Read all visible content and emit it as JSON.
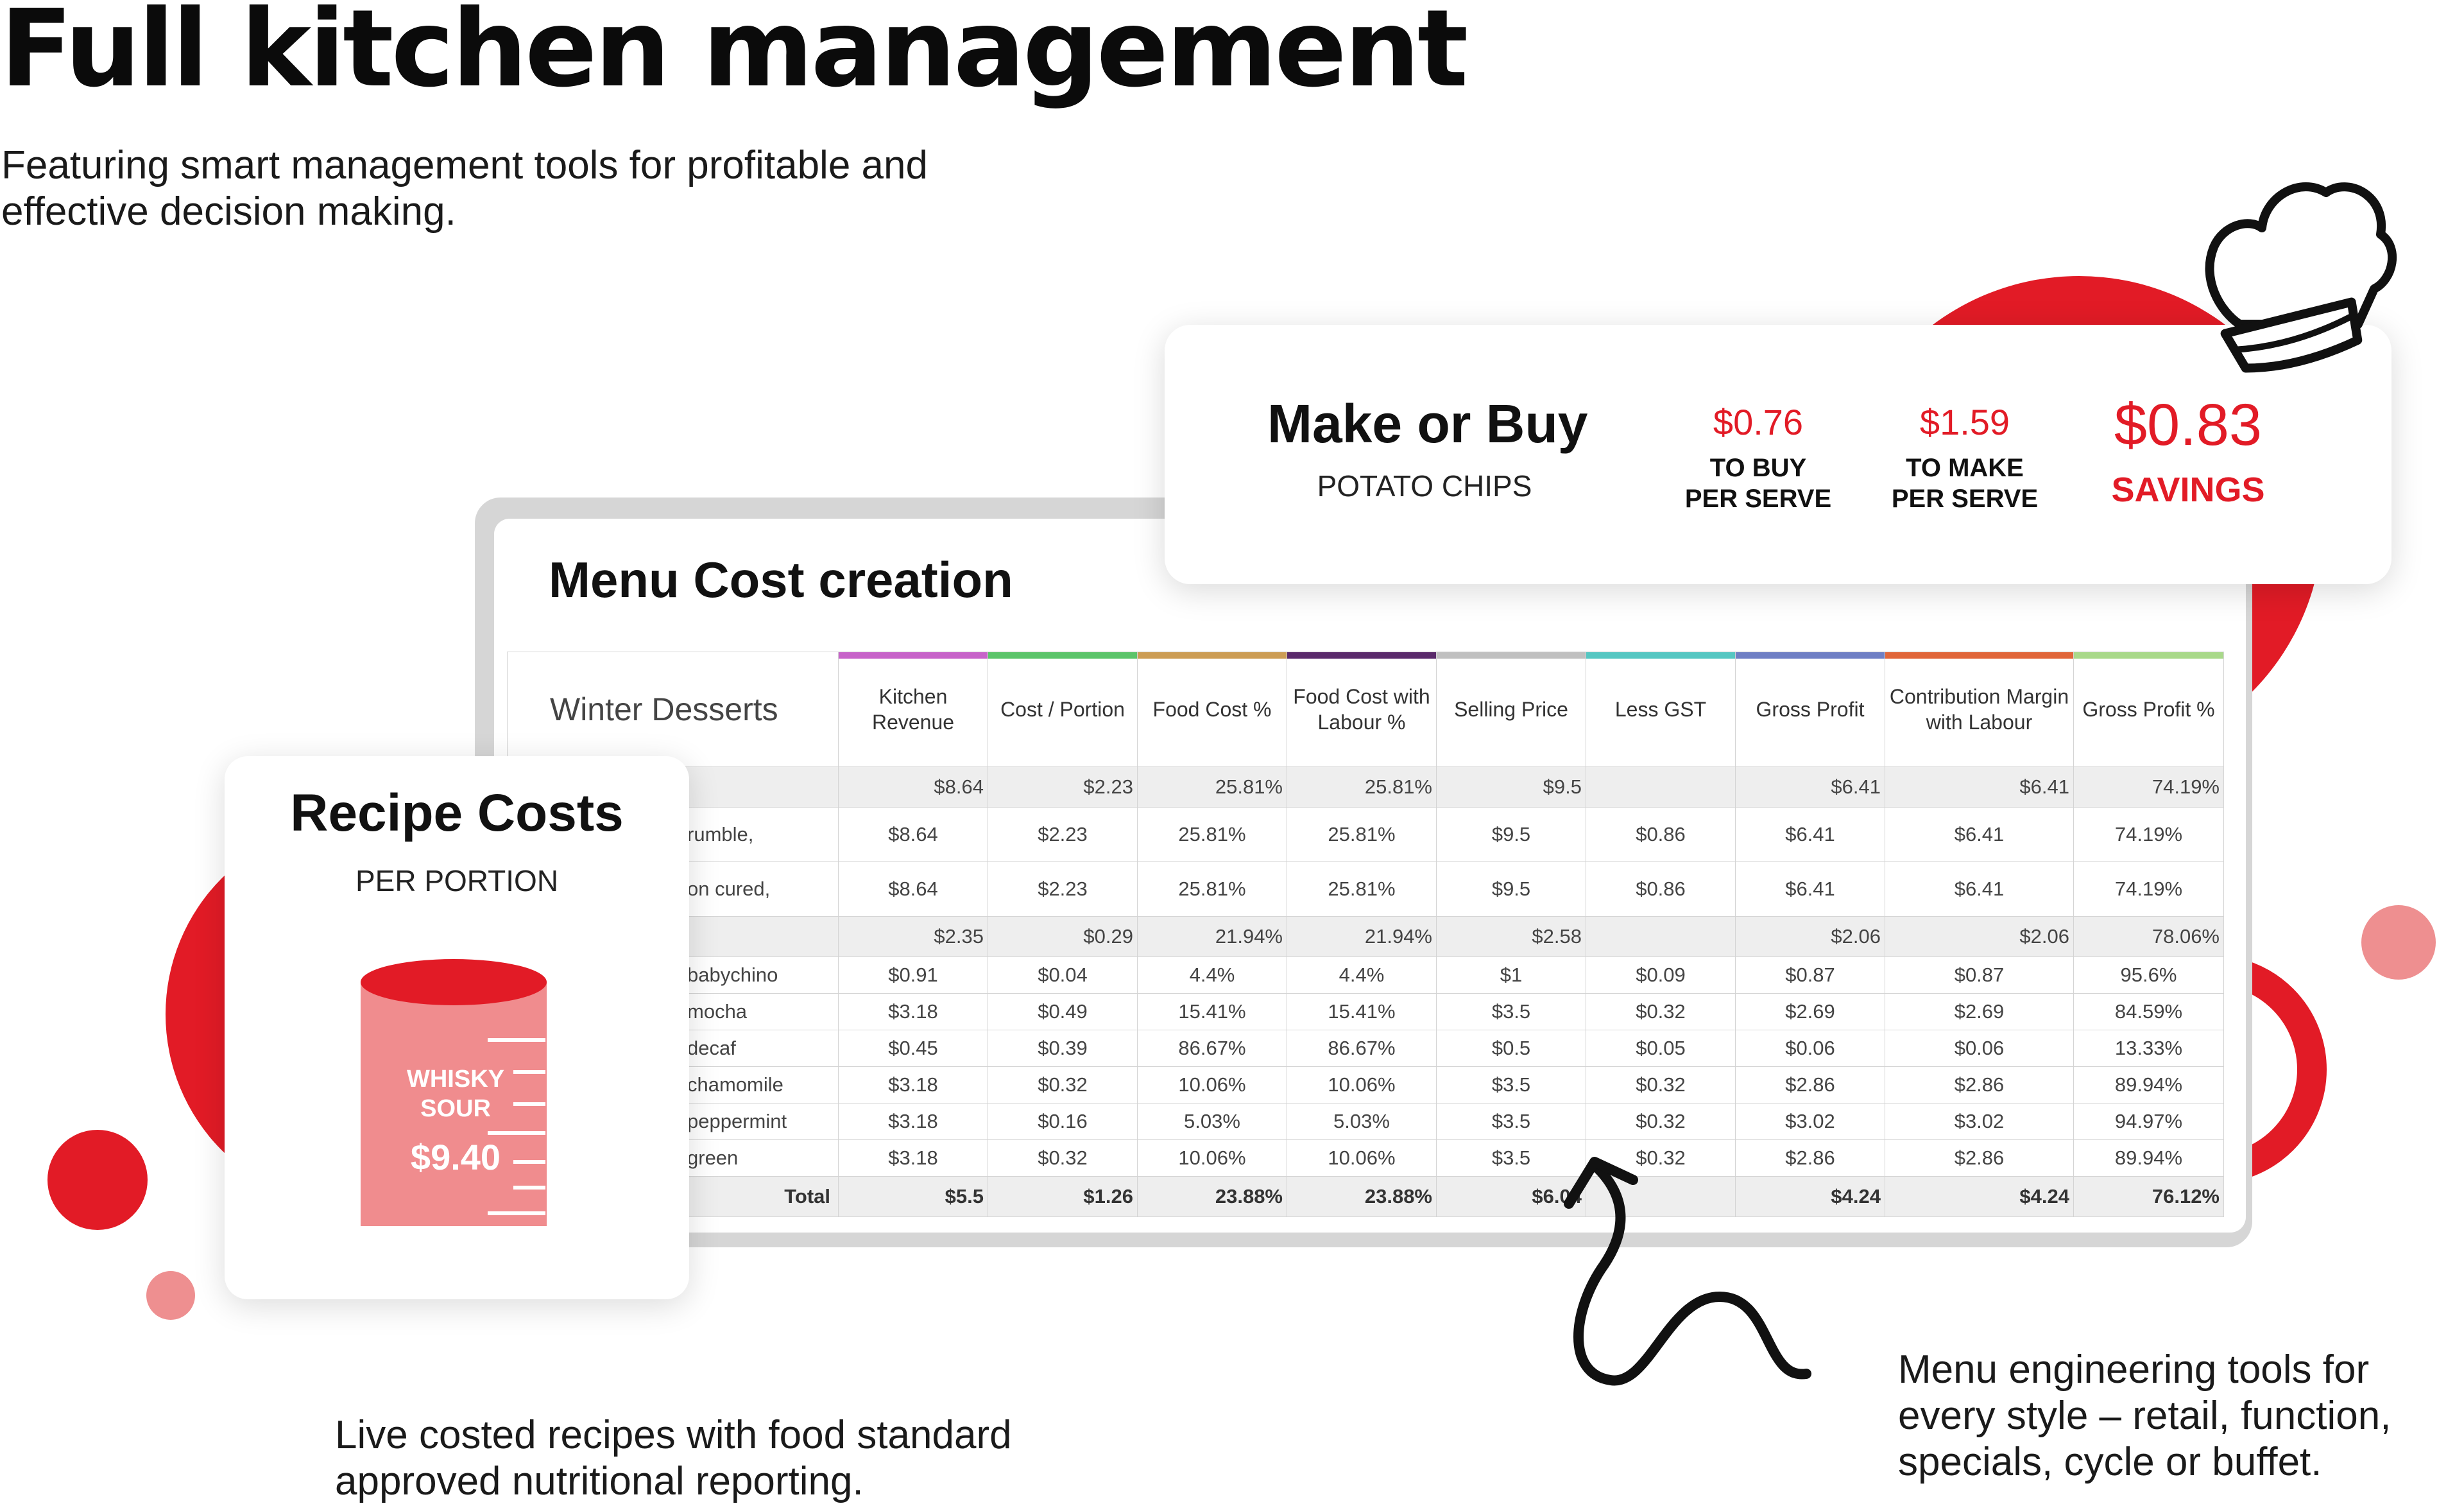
{
  "headline": "Full kitchen management",
  "subheadline": "Featuring smart management tools for profitable and effective decision making.",
  "make_or_buy": {
    "title": "Make or Buy",
    "item": "POTATO CHIPS",
    "buy_value": "$0.76",
    "buy_label": "TO BUY PER SERVE",
    "make_value": "$1.59",
    "make_label": "TO MAKE PER SERVE",
    "savings_value": "$0.83",
    "savings_label": "SAVINGS"
  },
  "menu_cost": {
    "title": "Menu Cost creation",
    "menu_name": "Winter Desserts",
    "columns": [
      {
        "label": "Kitchen Revenue",
        "color": "#c763c9"
      },
      {
        "label": "Cost / Portion",
        "color": "#5cc46a"
      },
      {
        "label": "Food Cost %",
        "color": "#cc9d55"
      },
      {
        "label": "Food Cost with Labour %",
        "color": "#5a2a6b"
      },
      {
        "label": "Selling Price",
        "color": "#c0c0c0"
      },
      {
        "label": "Less GST",
        "color": "#56c7c2"
      },
      {
        "label": "Gross Profit",
        "color": "#6f7fc4"
      },
      {
        "label": "Contribution Margin with Labour",
        "color": "#e0663a"
      },
      {
        "label": "Gross Profit %",
        "color": "#a9d98a"
      }
    ],
    "rows": [
      {
        "type": "group",
        "name": "",
        "cells": [
          "$8.64",
          "$2.23",
          "25.81%",
          "25.81%",
          "$9.5",
          "",
          "$6.41",
          "$6.41",
          "74.19%"
        ]
      },
      {
        "type": "tall",
        "name": "rumble,",
        "cells": [
          "$8.64",
          "$2.23",
          "25.81%",
          "25.81%",
          "$9.5",
          "$0.86",
          "$6.41",
          "$6.41",
          "74.19%"
        ]
      },
      {
        "type": "tall",
        "name": "on cured,",
        "cells": [
          "$8.64",
          "$2.23",
          "25.81%",
          "25.81%",
          "$9.5",
          "$0.86",
          "$6.41",
          "$6.41",
          "74.19%"
        ]
      },
      {
        "type": "group",
        "name": "",
        "cells": [
          "$2.35",
          "$0.29",
          "21.94%",
          "21.94%",
          "$2.58",
          "",
          "$2.06",
          "$2.06",
          "78.06%"
        ]
      },
      {
        "type": "item",
        "name": "babychino",
        "cells": [
          "$0.91",
          "$0.04",
          "4.4%",
          "4.4%",
          "$1",
          "$0.09",
          "$0.87",
          "$0.87",
          "95.6%"
        ]
      },
      {
        "type": "item",
        "name": "mocha",
        "cells": [
          "$3.18",
          "$0.49",
          "15.41%",
          "15.41%",
          "$3.5",
          "$0.32",
          "$2.69",
          "$2.69",
          "84.59%"
        ]
      },
      {
        "type": "item",
        "name": "decaf",
        "cells": [
          "$0.45",
          "$0.39",
          "86.67%",
          "86.67%",
          "$0.5",
          "$0.05",
          "$0.06",
          "$0.06",
          "13.33%"
        ]
      },
      {
        "type": "item",
        "name": "chamomile",
        "cells": [
          "$3.18",
          "$0.32",
          "10.06%",
          "10.06%",
          "$3.5",
          "$0.32",
          "$2.86",
          "$2.86",
          "89.94%"
        ]
      },
      {
        "type": "item",
        "name": "peppermint",
        "cells": [
          "$3.18",
          "$0.16",
          "5.03%",
          "5.03%",
          "$3.5",
          "$0.32",
          "$3.02",
          "$3.02",
          "94.97%"
        ]
      },
      {
        "type": "item",
        "name": "green",
        "cells": [
          "$3.18",
          "$0.32",
          "10.06%",
          "10.06%",
          "$3.5",
          "$0.32",
          "$2.86",
          "$2.86",
          "89.94%"
        ]
      },
      {
        "type": "total",
        "name": "Total",
        "cells": [
          "$5.5",
          "$1.26",
          "23.88%",
          "23.88%",
          "$6.04",
          "",
          "$4.24",
          "$4.24",
          "76.12%"
        ]
      }
    ]
  },
  "recipe_costs": {
    "title": "Recipe Costs",
    "subtitle": "PER PORTION",
    "recipe_name": "WHISKY SOUR",
    "recipe_price": "$9.40"
  },
  "caption_left": "Live costed recipes with food standard approved nutritional reporting.",
  "caption_right": "Menu engineering tools for every style – retail, function, specials, cycle or buffet.",
  "colors": {
    "accent_red": "#e21b26",
    "pink": "#ee8f90",
    "jug_pink": "#f08c8e"
  },
  "icons": [
    "chef-hat-icon",
    "measuring-jug-icon",
    "curly-arrow-icon"
  ]
}
